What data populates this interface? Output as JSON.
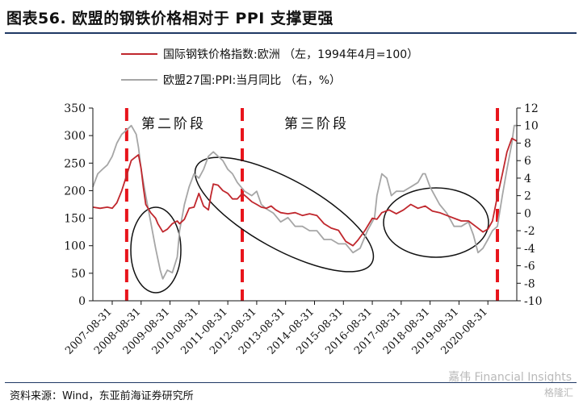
{
  "figure": {
    "title": "图表56. 欧盟的钢铁价格相对于 PPI 支撑更强",
    "source": "资料来源：Wind，东亚前海证券研究所",
    "watermark": "嘉伟 Financial Insights",
    "watermark_logo": "格隆汇"
  },
  "colors": {
    "red": "#c0272d",
    "gray": "#a6a6a6",
    "phase_line": "#e8141b"
  },
  "chart_data": {
    "type": "line",
    "x_categories": [
      "2007-08-31",
      "2008-08-31",
      "2009-08-31",
      "2010-08-31",
      "2011-08-31",
      "2012-08-31",
      "2013-08-31",
      "2014-08-31",
      "2015-08-31",
      "2016-08-31",
      "2017-08-31",
      "2018-08-31",
      "2019-08-31",
      "2020-08-31"
    ],
    "x_range": [
      2007.0,
      2021.67
    ],
    "y_left": {
      "min": 0,
      "max": 350,
      "step": 50,
      "ticks": [
        "0",
        "50",
        "100",
        "150",
        "200",
        "250",
        "300",
        "350"
      ]
    },
    "y_right": {
      "min": -10,
      "max": 12,
      "step": 2,
      "ticks": [
        "-10",
        "-8",
        "-6",
        "-4",
        "-2",
        "0",
        "2",
        "4",
        "6",
        "8",
        "10",
        "12"
      ]
    },
    "legend": {
      "placement": "top-left",
      "entries": [
        "国际钢铁价格指数:欧洲 （左，1994年4月=100）",
        "欧盟27国:PPI:当月同比 （右，%）"
      ]
    },
    "phase_labels": [
      "第二阶段",
      "第三阶段"
    ],
    "phase_boundaries": [
      2008.17,
      2012.17,
      2021.0
    ],
    "ellipses_note": "highlighted periods",
    "series": [
      {
        "name": "国际钢铁价格指数:欧洲 （左，1994年4月=100）",
        "axis": "left",
        "points": [
          [
            2007.0,
            170
          ],
          [
            2007.25,
            168
          ],
          [
            2007.5,
            170
          ],
          [
            2007.67,
            168
          ],
          [
            2007.83,
            178
          ],
          [
            2008.0,
            200
          ],
          [
            2008.17,
            228
          ],
          [
            2008.33,
            255
          ],
          [
            2008.5,
            262
          ],
          [
            2008.58,
            265
          ],
          [
            2008.67,
            240
          ],
          [
            2008.75,
            205
          ],
          [
            2008.83,
            175
          ],
          [
            2009.0,
            160
          ],
          [
            2009.17,
            150
          ],
          [
            2009.25,
            140
          ],
          [
            2009.42,
            125
          ],
          [
            2009.58,
            130
          ],
          [
            2009.75,
            140
          ],
          [
            2009.92,
            145
          ],
          [
            2010.0,
            140
          ],
          [
            2010.17,
            148
          ],
          [
            2010.33,
            168
          ],
          [
            2010.5,
            170
          ],
          [
            2010.67,
            195
          ],
          [
            2010.83,
            172
          ],
          [
            2011.0,
            165
          ],
          [
            2011.08,
            190
          ],
          [
            2011.17,
            212
          ],
          [
            2011.33,
            210
          ],
          [
            2011.5,
            200
          ],
          [
            2011.67,
            195
          ],
          [
            2011.83,
            185
          ],
          [
            2012.0,
            185
          ],
          [
            2012.17,
            195
          ],
          [
            2012.33,
            188
          ],
          [
            2012.5,
            180
          ],
          [
            2012.67,
            175
          ],
          [
            2012.83,
            170
          ],
          [
            2013.0,
            168
          ],
          [
            2013.17,
            172
          ],
          [
            2013.33,
            165
          ],
          [
            2013.5,
            160
          ],
          [
            2013.75,
            158
          ],
          [
            2014.0,
            160
          ],
          [
            2014.25,
            155
          ],
          [
            2014.5,
            158
          ],
          [
            2014.75,
            155
          ],
          [
            2015.0,
            140
          ],
          [
            2015.25,
            132
          ],
          [
            2015.5,
            128
          ],
          [
            2015.75,
            108
          ],
          [
            2016.0,
            100
          ],
          [
            2016.17,
            110
          ],
          [
            2016.42,
            128
          ],
          [
            2016.67,
            150
          ],
          [
            2016.83,
            148
          ],
          [
            2017.0,
            160
          ],
          [
            2017.25,
            165
          ],
          [
            2017.5,
            158
          ],
          [
            2017.75,
            165
          ],
          [
            2018.0,
            175
          ],
          [
            2018.25,
            168
          ],
          [
            2018.5,
            172
          ],
          [
            2018.75,
            163
          ],
          [
            2019.0,
            160
          ],
          [
            2019.25,
            155
          ],
          [
            2019.5,
            150
          ],
          [
            2019.75,
            145
          ],
          [
            2020.0,
            145
          ],
          [
            2020.25,
            135
          ],
          [
            2020.5,
            125
          ],
          [
            2020.67,
            130
          ],
          [
            2020.83,
            145
          ],
          [
            2021.0,
            190
          ],
          [
            2021.17,
            230
          ],
          [
            2021.33,
            270
          ],
          [
            2021.5,
            295
          ],
          [
            2021.67,
            290
          ]
        ]
      },
      {
        "name": "欧盟27国:PPI:当月同比 （右，%）",
        "axis": "right",
        "points": [
          [
            2007.0,
            3.0
          ],
          [
            2007.17,
            4.5
          ],
          [
            2007.33,
            5.0
          ],
          [
            2007.5,
            5.5
          ],
          [
            2007.67,
            6.5
          ],
          [
            2007.83,
            8.0
          ],
          [
            2008.0,
            9.0
          ],
          [
            2008.17,
            9.5
          ],
          [
            2008.33,
            10.0
          ],
          [
            2008.5,
            9.0
          ],
          [
            2008.58,
            7.5
          ],
          [
            2008.67,
            5.0
          ],
          [
            2008.83,
            2.0
          ],
          [
            2009.0,
            -1.0
          ],
          [
            2009.17,
            -4.0
          ],
          [
            2009.33,
            -6.5
          ],
          [
            2009.42,
            -7.5
          ],
          [
            2009.58,
            -6.5
          ],
          [
            2009.75,
            -6.8
          ],
          [
            2009.92,
            -5.0
          ],
          [
            2010.0,
            -2.0
          ],
          [
            2010.17,
            1.0
          ],
          [
            2010.33,
            3.0
          ],
          [
            2010.5,
            4.5
          ],
          [
            2010.67,
            4.0
          ],
          [
            2010.83,
            5.0
          ],
          [
            2011.0,
            6.5
          ],
          [
            2011.17,
            7.0
          ],
          [
            2011.33,
            6.5
          ],
          [
            2011.5,
            6.0
          ],
          [
            2011.67,
            5.0
          ],
          [
            2011.83,
            4.5
          ],
          [
            2012.0,
            3.5
          ],
          [
            2012.25,
            2.5
          ],
          [
            2012.5,
            2.0
          ],
          [
            2012.67,
            2.5
          ],
          [
            2012.83,
            1.0
          ],
          [
            2013.0,
            0.5
          ],
          [
            2013.25,
            0.0
          ],
          [
            2013.5,
            -1.0
          ],
          [
            2013.75,
            -0.5
          ],
          [
            2014.0,
            -1.5
          ],
          [
            2014.25,
            -1.5
          ],
          [
            2014.5,
            -2.0
          ],
          [
            2014.75,
            -2.0
          ],
          [
            2015.0,
            -3.0
          ],
          [
            2015.25,
            -3.0
          ],
          [
            2015.5,
            -3.5
          ],
          [
            2015.75,
            -3.5
          ],
          [
            2016.0,
            -4.5
          ],
          [
            2016.25,
            -4.0
          ],
          [
            2016.5,
            -2.0
          ],
          [
            2016.75,
            -0.5
          ],
          [
            2016.83,
            2.0
          ],
          [
            2017.0,
            4.5
          ],
          [
            2017.17,
            4.0
          ],
          [
            2017.33,
            2.0
          ],
          [
            2017.5,
            2.5
          ],
          [
            2017.75,
            2.5
          ],
          [
            2018.0,
            3.0
          ],
          [
            2018.25,
            3.5
          ],
          [
            2018.42,
            4.5
          ],
          [
            2018.5,
            4.5
          ],
          [
            2018.67,
            3.0
          ],
          [
            2018.83,
            2.0
          ],
          [
            2019.0,
            1.0
          ],
          [
            2019.25,
            0.0
          ],
          [
            2019.5,
            -1.5
          ],
          [
            2019.75,
            -1.5
          ],
          [
            2020.0,
            -1.0
          ],
          [
            2020.17,
            -2.5
          ],
          [
            2020.33,
            -4.5
          ],
          [
            2020.5,
            -4.0
          ],
          [
            2020.67,
            -3.0
          ],
          [
            2020.83,
            -2.0
          ],
          [
            2021.0,
            -1.5
          ],
          [
            2021.17,
            2.0
          ],
          [
            2021.33,
            5.0
          ],
          [
            2021.5,
            8.0
          ],
          [
            2021.58,
            10.0
          ],
          [
            2021.67,
            10.0
          ]
        ]
      }
    ]
  }
}
